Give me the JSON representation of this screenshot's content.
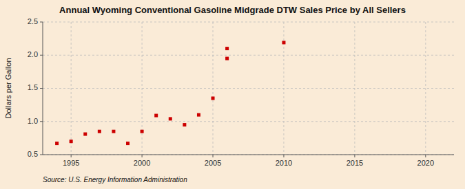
{
  "chart_data": {
    "type": "scatter",
    "title": "Annual Wyoming Conventional Gasoline Midgrade DTW Sales Price by All Sellers",
    "y_label": "Dollars per Gallon",
    "annotations": [
      "Source: U.S. Energy Information Administration"
    ],
    "x": [
      1994,
      1995,
      1996,
      1997,
      1998,
      1999,
      2000,
      2001,
      2002,
      2003,
      2004,
      2005,
      2006,
      2010,
      2006
    ],
    "values": [
      0.67,
      0.7,
      0.81,
      0.85,
      0.85,
      0.67,
      0.85,
      1.09,
      1.04,
      0.95,
      1.1,
      1.35,
      1.95,
      2.19,
      2.1
    ],
    "color": "#cc0000",
    "marker": "square",
    "xlim": [
      1993,
      2022
    ],
    "ylim": [
      0.5,
      2.5
    ],
    "xticks": [
      1995,
      2000,
      2005,
      2010,
      2015,
      2020
    ],
    "yticks": [
      0.5,
      {
        "value": 1.0,
        "label": "1.0"
      },
      1.5,
      {
        "value": 2.0,
        "label": "2.0"
      },
      2.5
    ],
    "grid": true
  }
}
